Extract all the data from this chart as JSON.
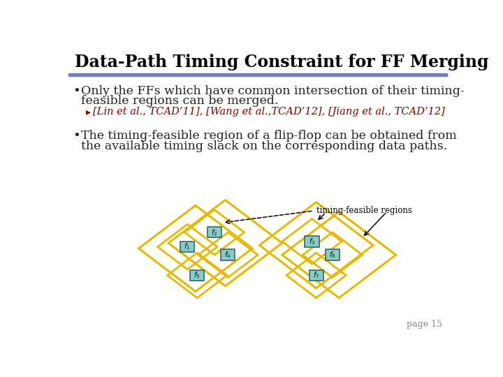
{
  "title": "Data-Path Timing Constraint for FF Merging",
  "bullet1_line1": "Only the FFs which have common intersection of their timing-",
  "bullet1_line2": "feasible regions can be merged.",
  "sub_bullet_arrow": "▸",
  "sub_bullet1": "[Lin et al., TCAD’11], [Wang et al.,TCAD’12], [Jiang et al., TCAD’12]",
  "bullet2_line1": "The timing-feasible region of a flip-flop can be obtained from",
  "bullet2_line2": "the available timing slack on the corresponding data paths.",
  "annotation": "timing-feasible regions",
  "page": "page 15",
  "bg_color": "#ffffff",
  "title_color": "#000000",
  "title_bar_color": "#7080c0",
  "bullet_color": "#222222",
  "sub_bullet_color": "#7a0000",
  "diamond_edge_color": "#E8B800",
  "ff_box_color": "#88CCCC",
  "ff_box_edge_color": "#336666",
  "annotation_color": "#000000",
  "page_color": "#888888"
}
